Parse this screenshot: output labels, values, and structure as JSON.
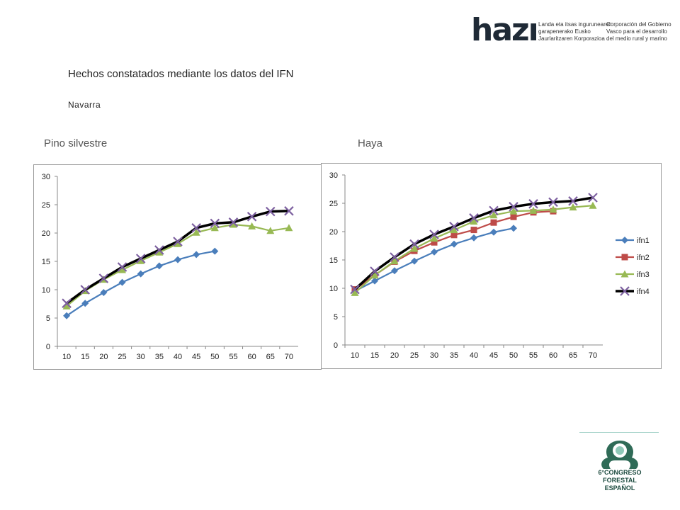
{
  "header": {
    "logo_text": "hazı",
    "logo_line_eu": "Landa eta itsas ingurunearen\ngarapenerako Eusko\nJaurlaritzaren Korporazioa",
    "logo_line_es": "Corporación del Gobierno\nVasco para el desarrollo\ndel medio rural y marino"
  },
  "title": "Hechos constatados mediante los datos del IFN",
  "subtitle": "Navarra",
  "footer_logo": {
    "line1": "6°CONGRESO FORESTAL",
    "line2": "ESPAÑOL"
  },
  "colors": {
    "ifn1": "#4a7ebb",
    "ifn2": "#be4b48",
    "ifn3": "#98b954",
    "ifn4": "#000000",
    "ifn4_marker": "#7d60a0"
  },
  "chart_data": [
    {
      "type": "line",
      "label": "Pino silvestre",
      "x": [
        10,
        15,
        20,
        25,
        30,
        35,
        40,
        45,
        50,
        55,
        60,
        65,
        70
      ],
      "ylim": [
        0,
        30
      ],
      "yticks": [
        0,
        5,
        10,
        15,
        20,
        25,
        30
      ],
      "grid": false,
      "legend": "none",
      "series": [
        {
          "key": "ifn1",
          "marker": "diamond",
          "values": [
            5.4,
            7.6,
            9.5,
            11.3,
            12.8,
            14.2,
            15.3,
            16.2,
            16.8,
            null,
            null,
            null,
            null
          ]
        },
        {
          "key": "ifn3",
          "marker": "triangle",
          "values": [
            7.1,
            9.8,
            11.8,
            13.5,
            15.1,
            16.6,
            18.1,
            20.1,
            20.9,
            21.5,
            21.2,
            20.4,
            20.9
          ]
        },
        {
          "key": "ifn4",
          "marker": "x",
          "values": [
            7.6,
            10.0,
            12.0,
            14.0,
            15.5,
            17.0,
            18.5,
            20.9,
            21.7,
            21.9,
            22.9,
            23.8,
            23.9
          ]
        }
      ]
    },
    {
      "type": "line",
      "label": "Haya",
      "x": [
        10,
        15,
        20,
        25,
        30,
        35,
        40,
        45,
        50,
        55,
        60,
        65,
        70
      ],
      "ylim": [
        0,
        30
      ],
      "yticks": [
        0,
        5,
        10,
        15,
        20,
        25,
        30
      ],
      "grid": false,
      "legend": "right",
      "series": [
        {
          "name": "ifn1",
          "key": "ifn1",
          "marker": "diamond",
          "values": [
            9.5,
            11.3,
            13.1,
            14.8,
            16.4,
            17.8,
            18.9,
            19.9,
            20.6,
            null,
            null,
            null,
            null
          ]
        },
        {
          "name": "ifn2",
          "key": "ifn2",
          "marker": "square",
          "values": [
            9.8,
            12.3,
            14.7,
            16.6,
            18.1,
            19.4,
            20.3,
            21.6,
            22.6,
            23.4,
            23.6,
            null,
            null
          ]
        },
        {
          "name": "ifn3",
          "key": "ifn3",
          "marker": "triangle",
          "values": [
            9.2,
            12.3,
            14.8,
            17.0,
            18.8,
            20.3,
            21.8,
            22.9,
            23.6,
            23.7,
            23.9,
            24.3,
            24.6
          ]
        },
        {
          "name": "ifn4",
          "key": "ifn4",
          "marker": "x",
          "values": [
            9.8,
            13.0,
            15.5,
            17.8,
            19.5,
            20.9,
            22.4,
            23.7,
            24.4,
            24.9,
            25.2,
            25.4,
            26.0
          ]
        }
      ]
    }
  ]
}
